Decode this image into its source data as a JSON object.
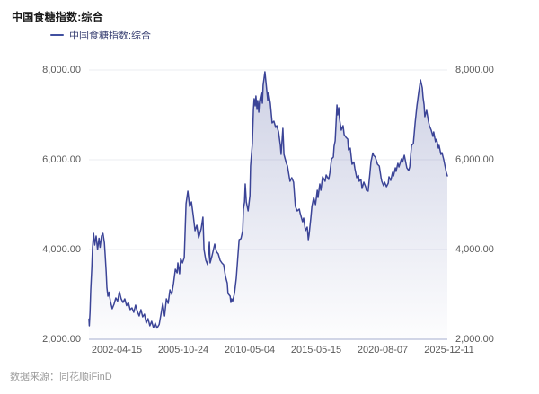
{
  "title": "中国食糖指数:综合",
  "legend": {
    "label": "中国食糖指数:综合"
  },
  "source_note": "数据来源：同花顺iFinD",
  "colors": {
    "line": "#3B4497",
    "legend_dash": "#4150A0",
    "legend_text": "#3C4375",
    "title_text": "#1A1A1A",
    "tick_text": "#595959",
    "grid_line": "#EBECF2",
    "axis_line": "#A6ADCF",
    "fill_top": "rgba(78,90,160,0.28)",
    "fill_bottom": "rgba(78,90,160,0.01)"
  },
  "chart_data": {
    "type": "area",
    "title": "中国食糖指数:综合",
    "series_name": "中国食糖指数:综合",
    "legend_position": "top-left",
    "grid": "horizontal-only",
    "x_start_date": "2002-04-15",
    "x_end_date": "2025-12-11",
    "x_tick_labels": [
      "2002-04-15",
      "2005-10-24",
      "2010-05-04",
      "2015-05-15",
      "2020-08-07",
      "2025-12-11"
    ],
    "y_tick_labels": [
      "8,000.00",
      "6,000.00",
      "4,000.00",
      "2,000.00"
    ],
    "y_tick_values": [
      8000,
      6000,
      4000,
      2000
    ],
    "ylim": [
      2000,
      8000
    ],
    "y_axis_sides": [
      "left",
      "right"
    ],
    "points": [
      [
        0.0,
        2450
      ],
      [
        0.001,
        2300
      ],
      [
        0.003,
        2600
      ],
      [
        0.005,
        3100
      ],
      [
        0.008,
        3600
      ],
      [
        0.01,
        4050
      ],
      [
        0.013,
        4360
      ],
      [
        0.016,
        4100
      ],
      [
        0.02,
        4300
      ],
      [
        0.024,
        4000
      ],
      [
        0.028,
        4250
      ],
      [
        0.031,
        4050
      ],
      [
        0.035,
        4300
      ],
      [
        0.039,
        4360
      ],
      [
        0.043,
        4150
      ],
      [
        0.045,
        3900
      ],
      [
        0.048,
        3500
      ],
      [
        0.05,
        3150
      ],
      [
        0.053,
        2960
      ],
      [
        0.056,
        3050
      ],
      [
        0.06,
        2850
      ],
      [
        0.065,
        2680
      ],
      [
        0.07,
        2780
      ],
      [
        0.075,
        2920
      ],
      [
        0.08,
        2850
      ],
      [
        0.085,
        3060
      ],
      [
        0.09,
        2900
      ],
      [
        0.095,
        2820
      ],
      [
        0.1,
        2900
      ],
      [
        0.105,
        2750
      ],
      [
        0.11,
        2820
      ],
      [
        0.115,
        2660
      ],
      [
        0.12,
        2700
      ],
      [
        0.125,
        2600
      ],
      [
        0.13,
        2760
      ],
      [
        0.135,
        2620
      ],
      [
        0.14,
        2520
      ],
      [
        0.145,
        2660
      ],
      [
        0.15,
        2500
      ],
      [
        0.155,
        2560
      ],
      [
        0.16,
        2360
      ],
      [
        0.165,
        2460
      ],
      [
        0.17,
        2300
      ],
      [
        0.175,
        2400
      ],
      [
        0.18,
        2260
      ],
      [
        0.185,
        2360
      ],
      [
        0.19,
        2250
      ],
      [
        0.196,
        2330
      ],
      [
        0.201,
        2560
      ],
      [
        0.206,
        2800
      ],
      [
        0.211,
        2520
      ],
      [
        0.216,
        2900
      ],
      [
        0.221,
        2800
      ],
      [
        0.226,
        3100
      ],
      [
        0.231,
        3000
      ],
      [
        0.236,
        3250
      ],
      [
        0.241,
        3560
      ],
      [
        0.246,
        3480
      ],
      [
        0.248,
        3700
      ],
      [
        0.253,
        3460
      ],
      [
        0.256,
        3800
      ],
      [
        0.261,
        3700
      ],
      [
        0.266,
        3820
      ],
      [
        0.268,
        4300
      ],
      [
        0.271,
        5020
      ],
      [
        0.276,
        5300
      ],
      [
        0.281,
        4960
      ],
      [
        0.286,
        5060
      ],
      [
        0.291,
        4760
      ],
      [
        0.296,
        4420
      ],
      [
        0.301,
        4540
      ],
      [
        0.306,
        4260
      ],
      [
        0.313,
        4460
      ],
      [
        0.318,
        4720
      ],
      [
        0.321,
        4000
      ],
      [
        0.326,
        3760
      ],
      [
        0.331,
        3660
      ],
      [
        0.336,
        4160
      ],
      [
        0.338,
        3700
      ],
      [
        0.343,
        3850
      ],
      [
        0.351,
        4120
      ],
      [
        0.356,
        3950
      ],
      [
        0.361,
        3900
      ],
      [
        0.366,
        3760
      ],
      [
        0.371,
        3700
      ],
      [
        0.376,
        3660
      ],
      [
        0.381,
        3400
      ],
      [
        0.386,
        3250
      ],
      [
        0.388,
        3020
      ],
      [
        0.394,
        2960
      ],
      [
        0.396,
        2820
      ],
      [
        0.398,
        2900
      ],
      [
        0.401,
        2850
      ],
      [
        0.406,
        3020
      ],
      [
        0.411,
        3360
      ],
      [
        0.416,
        3900
      ],
      [
        0.419,
        4220
      ],
      [
        0.424,
        4240
      ],
      [
        0.429,
        4420
      ],
      [
        0.431,
        4900
      ],
      [
        0.434,
        5060
      ],
      [
        0.436,
        5460
      ],
      [
        0.439,
        5060
      ],
      [
        0.444,
        4860
      ],
      [
        0.449,
        5200
      ],
      [
        0.451,
        5860
      ],
      [
        0.456,
        6360
      ],
      [
        0.459,
        7120
      ],
      [
        0.461,
        7360
      ],
      [
        0.464,
        7200
      ],
      [
        0.466,
        7420
      ],
      [
        0.469,
        7120
      ],
      [
        0.471,
        7320
      ],
      [
        0.474,
        7060
      ],
      [
        0.476,
        7300
      ],
      [
        0.481,
        7500
      ],
      [
        0.484,
        7260
      ],
      [
        0.486,
        7660
      ],
      [
        0.491,
        7960
      ],
      [
        0.496,
        7560
      ],
      [
        0.499,
        7320
      ],
      [
        0.501,
        7500
      ],
      [
        0.506,
        7260
      ],
      [
        0.509,
        7000
      ],
      [
        0.511,
        6820
      ],
      [
        0.516,
        6860
      ],
      [
        0.521,
        6720
      ],
      [
        0.524,
        6760
      ],
      [
        0.529,
        6620
      ],
      [
        0.534,
        6320
      ],
      [
        0.536,
        6120
      ],
      [
        0.541,
        6700
      ],
      [
        0.544,
        6120
      ],
      [
        0.546,
        6060
      ],
      [
        0.551,
        5920
      ],
      [
        0.554,
        5860
      ],
      [
        0.561,
        5520
      ],
      [
        0.566,
        5600
      ],
      [
        0.571,
        5500
      ],
      [
        0.576,
        4960
      ],
      [
        0.581,
        4860
      ],
      [
        0.587,
        4900
      ],
      [
        0.589,
        4820
      ],
      [
        0.596,
        4620
      ],
      [
        0.599,
        4700
      ],
      [
        0.604,
        4420
      ],
      [
        0.609,
        4500
      ],
      [
        0.612,
        4220
      ],
      [
        0.614,
        4320
      ],
      [
        0.619,
        4700
      ],
      [
        0.622,
        4960
      ],
      [
        0.627,
        5160
      ],
      [
        0.632,
        5000
      ],
      [
        0.637,
        5320
      ],
      [
        0.639,
        5160
      ],
      [
        0.644,
        5460
      ],
      [
        0.647,
        5320
      ],
      [
        0.652,
        5620
      ],
      [
        0.659,
        5520
      ],
      [
        0.662,
        5660
      ],
      [
        0.669,
        5560
      ],
      [
        0.672,
        5700
      ],
      [
        0.677,
        6020
      ],
      [
        0.682,
        6060
      ],
      [
        0.684,
        6300
      ],
      [
        0.687,
        6420
      ],
      [
        0.692,
        7220
      ],
      [
        0.694,
        7000
      ],
      [
        0.697,
        7160
      ],
      [
        0.699,
        6920
      ],
      [
        0.704,
        6660
      ],
      [
        0.709,
        6760
      ],
      [
        0.712,
        6560
      ],
      [
        0.717,
        6500
      ],
      [
        0.722,
        6460
      ],
      [
        0.724,
        6220
      ],
      [
        0.729,
        6260
      ],
      [
        0.734,
        5900
      ],
      [
        0.739,
        5950
      ],
      [
        0.742,
        5800
      ],
      [
        0.747,
        5600
      ],
      [
        0.752,
        5650
      ],
      [
        0.754,
        5520
      ],
      [
        0.759,
        5560
      ],
      [
        0.762,
        5360
      ],
      [
        0.767,
        5500
      ],
      [
        0.772,
        5400
      ],
      [
        0.774,
        5320
      ],
      [
        0.779,
        5300
      ],
      [
        0.784,
        5700
      ],
      [
        0.787,
        5960
      ],
      [
        0.792,
        6150
      ],
      [
        0.794,
        6100
      ],
      [
        0.799,
        6060
      ],
      [
        0.805,
        5900
      ],
      [
        0.81,
        5860
      ],
      [
        0.815,
        5600
      ],
      [
        0.817,
        5520
      ],
      [
        0.822,
        5420
      ],
      [
        0.825,
        5500
      ],
      [
        0.83,
        5400
      ],
      [
        0.835,
        5480
      ],
      [
        0.837,
        5620
      ],
      [
        0.842,
        5540
      ],
      [
        0.847,
        5720
      ],
      [
        0.85,
        5640
      ],
      [
        0.855,
        5820
      ],
      [
        0.857,
        5740
      ],
      [
        0.862,
        5920
      ],
      [
        0.865,
        5840
      ],
      [
        0.872,
        6020
      ],
      [
        0.875,
        5950
      ],
      [
        0.88,
        6100
      ],
      [
        0.885,
        5900
      ],
      [
        0.887,
        5820
      ],
      [
        0.892,
        5760
      ],
      [
        0.895,
        5840
      ],
      [
        0.9,
        6320
      ],
      [
        0.905,
        6360
      ],
      [
        0.91,
        6820
      ],
      [
        0.915,
        7200
      ],
      [
        0.92,
        7500
      ],
      [
        0.925,
        7780
      ],
      [
        0.93,
        7600
      ],
      [
        0.932,
        7400
      ],
      [
        0.935,
        7220
      ],
      [
        0.937,
        6960
      ],
      [
        0.942,
        7100
      ],
      [
        0.947,
        6860
      ],
      [
        0.95,
        6760
      ],
      [
        0.955,
        6660
      ],
      [
        0.96,
        6520
      ],
      [
        0.962,
        6620
      ],
      [
        0.967,
        6400
      ],
      [
        0.97,
        6460
      ],
      [
        0.975,
        6260
      ],
      [
        0.977,
        6320
      ],
      [
        0.982,
        6120
      ],
      [
        0.985,
        6160
      ],
      [
        0.99,
        6000
      ],
      [
        0.992,
        5920
      ],
      [
        0.997,
        5720
      ],
      [
        1.0,
        5640
      ]
    ]
  }
}
